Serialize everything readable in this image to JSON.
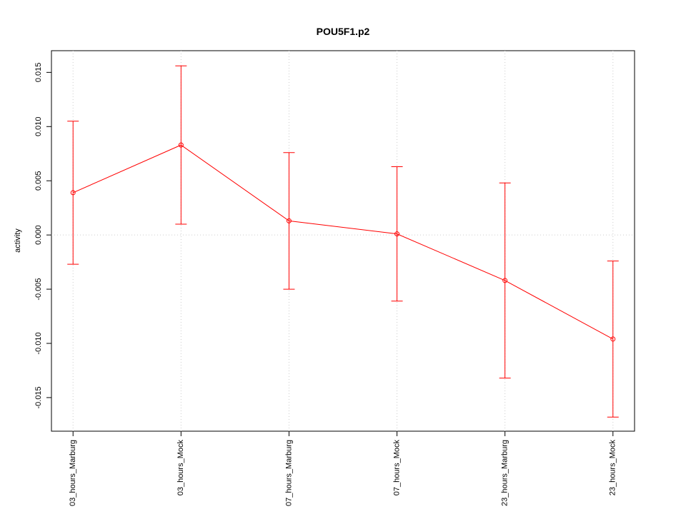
{
  "chart_data": {
    "type": "line",
    "title": "POU5F1.p2",
    "y_label": "activity",
    "categories": [
      "03_hours_Marburg",
      "03_hours_Mock",
      "07_hours_Marburg",
      "07_hours_Mock",
      "23_hours_Marburg",
      "23_hours_Mock"
    ],
    "series": [
      {
        "color": "#ff0000",
        "values": [
          0.0039,
          0.0083,
          0.0013,
          0.0001,
          -0.0042,
          -0.0096
        ],
        "errors": [
          0.0066,
          0.0073,
          0.0063,
          0.0062,
          0.009,
          0.0072
        ]
      }
    ],
    "ylim": [
      -0.0181,
      0.017
    ],
    "yticks": [
      -0.015,
      {
        "value": -0.01,
        "label": "-0.010"
      },
      -0.005,
      {
        "value": 0,
        "label": "0.000"
      },
      0.005,
      {
        "value": 0.01,
        "label": "0.010"
      },
      0.015
    ],
    "grid": true
  }
}
